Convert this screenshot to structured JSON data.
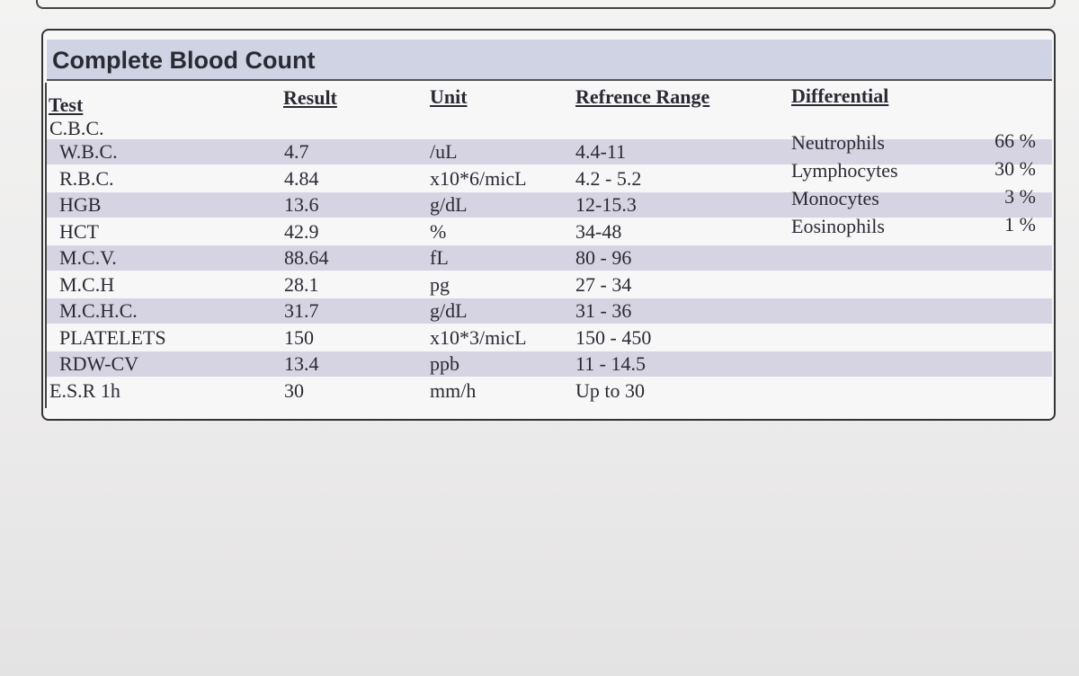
{
  "title": "Complete Blood Count",
  "headers": [
    "Test",
    "Result",
    "Unit",
    "Refrence Range",
    "Differential"
  ],
  "section": "C.B.C.",
  "rows": [
    [
      "W.B.C.",
      "4.7",
      "/uL",
      "4.4-11"
    ],
    [
      "R.B.C.",
      "4.84",
      "x10*6/micL",
      "4.2 - 5.2"
    ],
    [
      "HGB",
      "13.6",
      "g/dL",
      "12-15.3"
    ],
    [
      "HCT",
      "42.9",
      "%",
      "34-48"
    ],
    [
      "M.C.V.",
      "88.64",
      "fL",
      "80 - 96"
    ],
    [
      "M.C.H",
      "28.1",
      "pg",
      "27 - 34"
    ],
    [
      "M.C.H.C.",
      "31.7",
      "g/dL",
      "31 - 36"
    ],
    [
      "PLATELETS",
      "150",
      "x10*3/micL",
      "150 - 450"
    ],
    [
      "RDW-CV",
      "13.4",
      "ppb",
      "11 - 14.5"
    ],
    [
      "E.S.R 1h",
      "30",
      "mm/h",
      "Up to 30"
    ]
  ],
  "differential": [
    [
      "Neutrophils",
      "66 %"
    ],
    [
      "Lymphocytes",
      "30 %"
    ],
    [
      "Monocytes",
      "3 %"
    ],
    [
      "Eosinophils",
      "1 %"
    ]
  ]
}
